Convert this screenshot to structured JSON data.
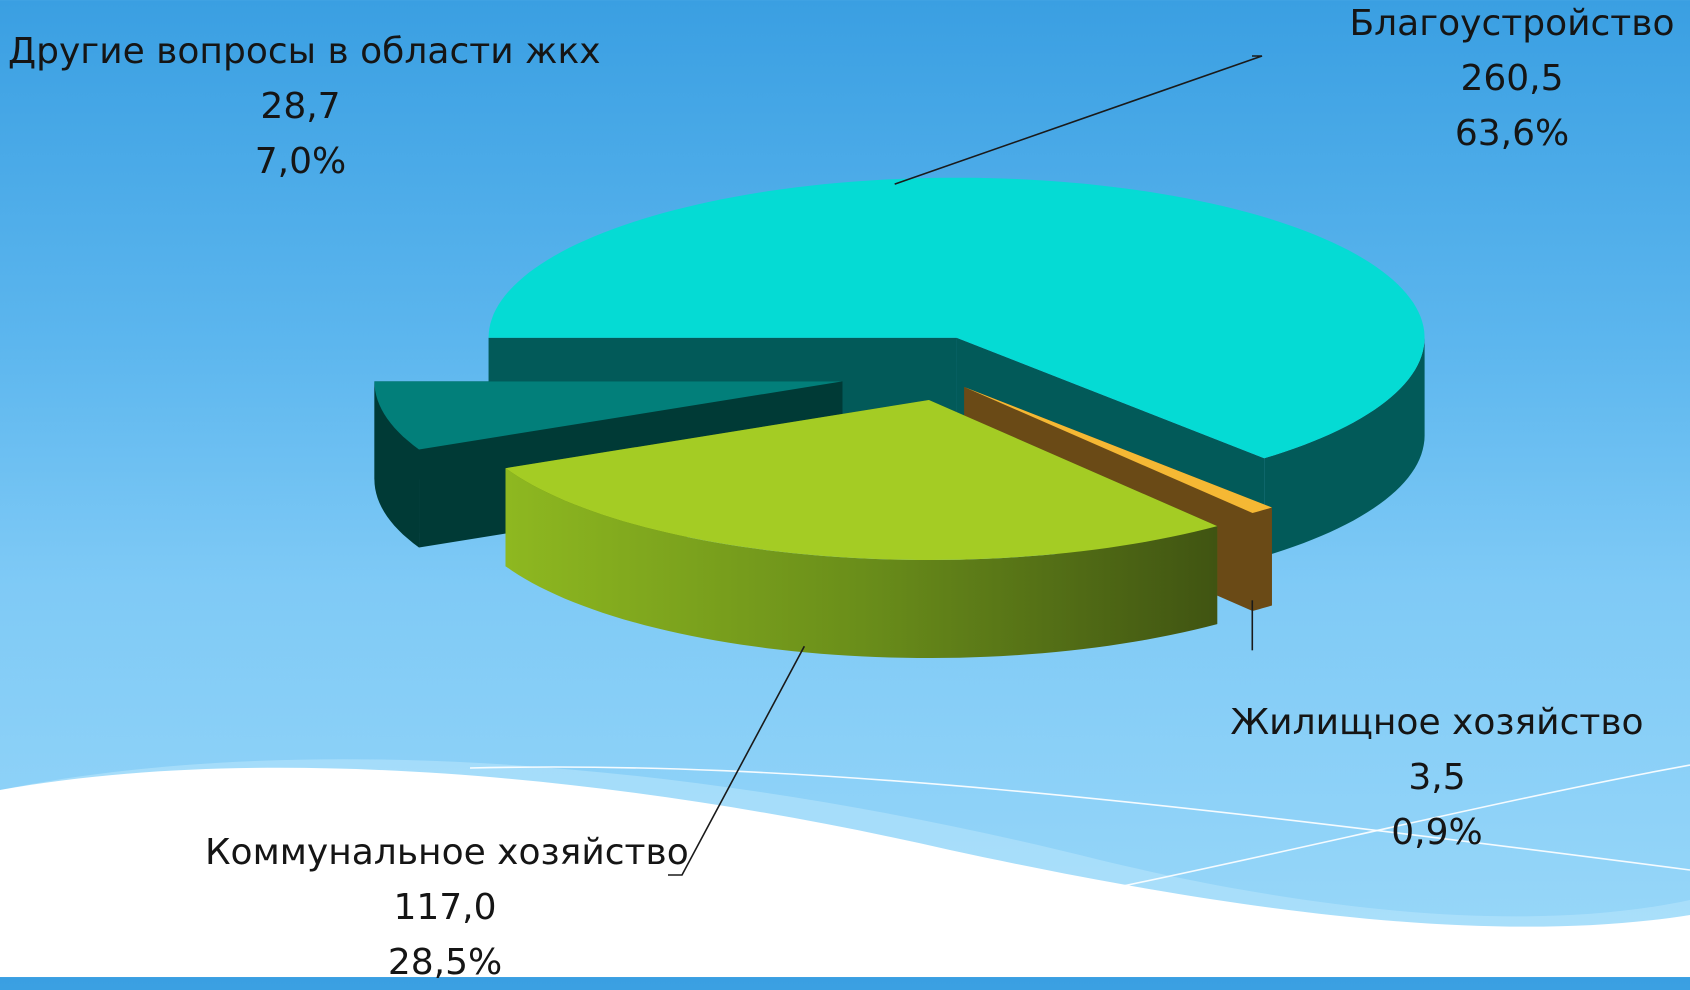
{
  "chart_data": {
    "type": "pie",
    "style": "3d-exploded",
    "legend": "none",
    "slices": [
      {
        "name": "Благоустройство",
        "value": 260.5,
        "value_label": "260,5",
        "percent": 63.6,
        "percent_label": "63,6%",
        "top_color": "#05dbd4",
        "side_color": "#025a59"
      },
      {
        "name": "Жилищное хозяйство",
        "value": 3.5,
        "value_label": "3,5",
        "percent": 0.9,
        "percent_label": "0,9%",
        "top_color": "#f5b834",
        "side_color": "#6a4a16"
      },
      {
        "name": "Коммунальное хозяйство",
        "value": 117.0,
        "value_label": "117,0",
        "percent": 28.5,
        "percent_label": "28,5%",
        "top_color": "#a4cc24",
        "side_color": "#5c7c16"
      },
      {
        "name": "Другие вопросы в области жкх",
        "value": 28.7,
        "value_label": "28,7",
        "percent": 7.0,
        "percent_label": "7,0%",
        "top_color": "#027f7a",
        "side_color": "#003a36"
      }
    ]
  }
}
